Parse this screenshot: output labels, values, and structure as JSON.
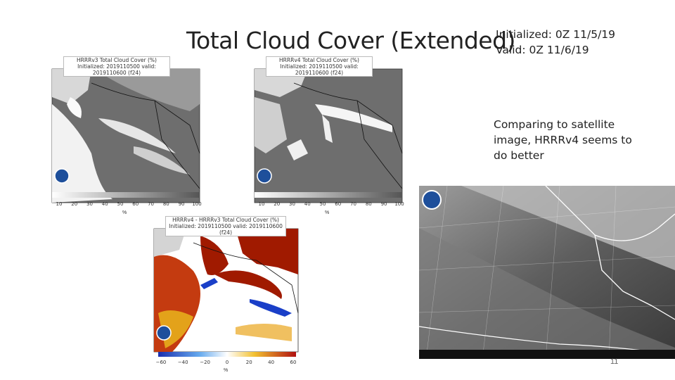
{
  "slide": {
    "title": "Total Cloud Cover (Extended)",
    "initialized": "Initialized: 0Z 11/5/19",
    "valid": "Valid: 0Z 11/6/19",
    "note": "Comparing to satellite image, HRRRv4 seems to do better",
    "page_number": "11"
  },
  "panels": {
    "v3": {
      "title_line1": "HRRRv3 Total Cloud Cover (%)",
      "title_line2": "Initialized: 2019110500 valid: 2019110600 (f24)",
      "ticks": [
        "10",
        "20",
        "30",
        "40",
        "50",
        "60",
        "70",
        "80",
        "90",
        "100"
      ],
      "unit": "%"
    },
    "v4": {
      "title_line1": "HRRRv4 Total Cloud Cover (%)",
      "title_line2": "Initialized: 2019110500 valid: 2019110600 (f24)",
      "ticks": [
        "10",
        "20",
        "30",
        "40",
        "50",
        "60",
        "70",
        "80",
        "90",
        "100"
      ],
      "unit": "%"
    },
    "diff": {
      "title_line1": "HRRRv4 - HRRRv3 Total Cloud Cover (%)",
      "title_line2": "Initialized: 2019110500 valid: 2019110600 (f24)",
      "ticks": [
        "−60",
        "−40",
        "−20",
        "0",
        "20",
        "40",
        "60"
      ],
      "unit": "%"
    }
  },
  "colors": {
    "cloud_gray": "#6e6e6e",
    "cloud_white": "#ffffff",
    "land": "#d0d0d0",
    "diff_positive": "#a01a00",
    "diff_negative": "#1a3fc8"
  }
}
